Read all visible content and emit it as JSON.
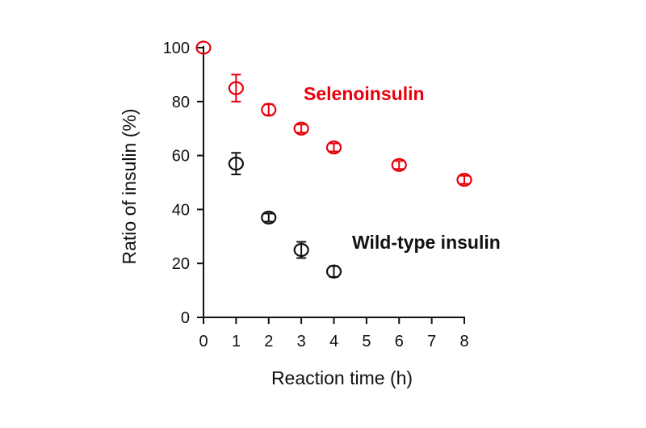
{
  "chart_data": {
    "type": "scatter",
    "xlabel": "Reaction time (h)",
    "ylabel": "Ratio of insulin (%)",
    "xlim": [
      0,
      8
    ],
    "ylim": [
      0,
      100
    ],
    "xticks": [
      0,
      1,
      2,
      3,
      4,
      5,
      6,
      7,
      8
    ],
    "yticks": [
      0,
      20,
      40,
      60,
      80,
      100
    ],
    "grid": false,
    "legend": "none",
    "series": [
      {
        "name": "Selenoinsulin",
        "color": "#e8000b",
        "points": [
          {
            "x": 0,
            "y": 100,
            "err": 0
          },
          {
            "x": 1,
            "y": 85,
            "err": 5
          },
          {
            "x": 2,
            "y": 77,
            "err": 2
          },
          {
            "x": 3,
            "y": 70,
            "err": 1.5
          },
          {
            "x": 4,
            "y": 63,
            "err": 1.5
          },
          {
            "x": 6,
            "y": 56.5,
            "err": 1.5
          },
          {
            "x": 8,
            "y": 51,
            "err": 1.5
          }
        ]
      },
      {
        "name": "Wild-type insulin",
        "color": "#111111",
        "points": [
          {
            "x": 1,
            "y": 57,
            "err": 4
          },
          {
            "x": 2,
            "y": 37,
            "err": 1.5
          },
          {
            "x": 3,
            "y": 25,
            "err": 3
          },
          {
            "x": 4,
            "y": 17,
            "err": 2
          }
        ]
      }
    ]
  }
}
